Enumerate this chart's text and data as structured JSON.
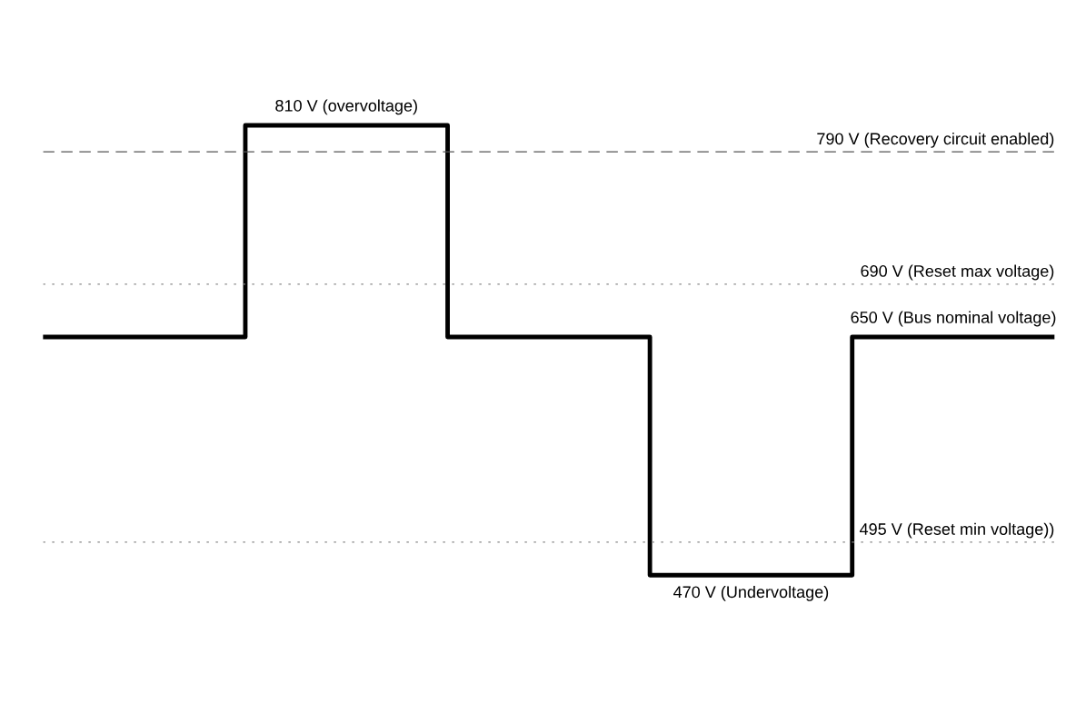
{
  "chart_data": {
    "type": "step",
    "categories": [
      null,
      null,
      null,
      null,
      null,
      null
    ],
    "series": [
      {
        "color": "#000000",
        "values": [
          650,
          810,
          650,
          470,
          650,
          650
        ],
        "value_labels": [
          null,
          "810 V (overvoltage)",
          null,
          "470 V (Undervoltage)",
          "650 V (Bus nominal voltage)",
          null
        ]
      }
    ],
    "ref_lines": [
      {
        "axis": "y",
        "value": 790,
        "label": "790 V (Recovery circuit enabled)",
        "color": "#555555",
        "line_style": "dashed"
      },
      {
        "axis": "y",
        "value": 690,
        "label": "690 V (Reset max voltage)",
        "color": "#888888",
        "line_style": "dotted"
      },
      {
        "axis": "y",
        "value": 495,
        "label": "495 V (Reset min voltage))",
        "color": "#888888",
        "line_style": "dotted"
      }
    ],
    "legend": false,
    "tick_labels": false
  }
}
